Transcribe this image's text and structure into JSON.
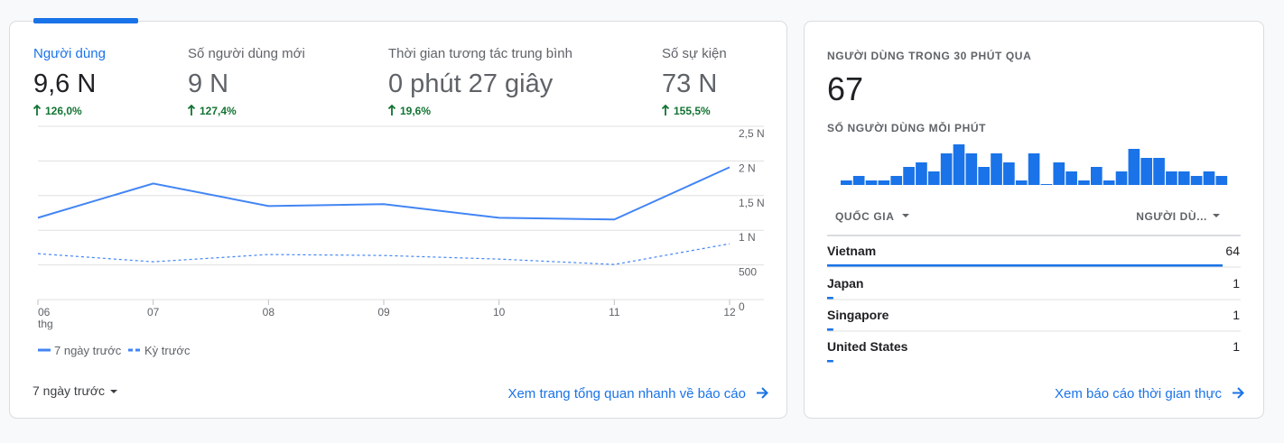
{
  "metrics": [
    {
      "label": "Người dùng",
      "value": "9,6 N",
      "change": "126,0%"
    },
    {
      "label": "Số người dùng mới",
      "value": "9 N",
      "change": "127,4%"
    },
    {
      "label": "Thời gian tương tác trung bình",
      "value": "0 phút 27 giây",
      "change": "19,6%"
    },
    {
      "label": "Số sự kiện",
      "value": "73 N",
      "change": "155,5%"
    }
  ],
  "chart_data": [
    {
      "type": "line",
      "categories": [
        "06",
        "07",
        "08",
        "09",
        "10",
        "11",
        "12"
      ],
      "x_sublabel": "thg",
      "series": [
        {
          "name": "7 ngày trước",
          "color": "#4285f4",
          "style": "solid",
          "values": [
            1180,
            1675,
            1350,
            1377,
            1180,
            1155,
            1909
          ]
        },
        {
          "name": "Kỳ trước",
          "color": "#4285f4",
          "style": "dashed",
          "values": [
            662,
            545,
            650,
            636,
            584,
            506,
            805
          ]
        }
      ],
      "ylim": [
        0,
        2500
      ],
      "yticks": [
        0,
        500,
        {
          "value": 1000,
          "label": "1 N"
        },
        {
          "value": 1500,
          "label": "1,5 N"
        },
        {
          "value": 2000,
          "label": "2 N"
        },
        {
          "value": 2500,
          "label": "2,5 N"
        }
      ],
      "grid": true
    },
    {
      "type": "bar",
      "title": "NGƯỜI DÙNG TRONG 30 PHÚT QUA",
      "total": "67",
      "subtitle": "SỐ NGƯỜI DÙNG MỖI PHÚT",
      "color": "#1a73e8",
      "values": [
        1,
        2,
        1,
        1,
        2,
        4,
        5,
        3,
        7,
        9,
        7,
        4,
        7,
        5,
        1,
        7,
        0,
        5,
        3,
        1,
        4,
        1,
        3,
        8,
        6,
        6,
        3,
        3,
        2,
        3,
        2
      ]
    }
  ],
  "period": "7 ngày trước",
  "overview_link": "Xem trang tổng quan nhanh về báo cáo",
  "table": {
    "headers": [
      "QUỐC GIA",
      "NGƯỜI DÙ..."
    ],
    "rows": [
      {
        "country": "Vietnam",
        "users": 64
      },
      {
        "country": "Japan",
        "users": 1
      },
      {
        "country": "Singapore",
        "users": 1
      },
      {
        "country": "United States",
        "users": 1
      }
    ]
  },
  "realtime_link": "Xem báo cáo thời gian thực"
}
